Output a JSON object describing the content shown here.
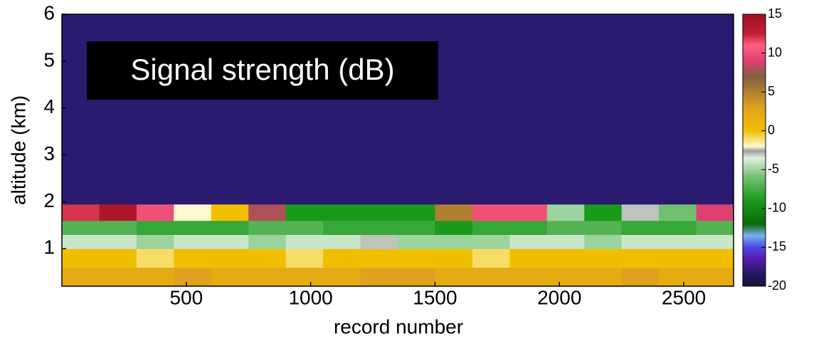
{
  "chart_data": {
    "type": "heatmap",
    "title": "Signal strength (dB)",
    "x_label": "record number",
    "y_label": "altitude (km)",
    "xlim": [
      0,
      2700
    ],
    "ylim": [
      0.2,
      6
    ],
    "xticks": [
      500,
      1000,
      1500,
      2000,
      2500
    ],
    "yticks": [
      1,
      2,
      3,
      4,
      5,
      6
    ],
    "x_edges": [
      0,
      150,
      300,
      450,
      600,
      750,
      900,
      1050,
      1200,
      1350,
      1500,
      1650,
      1800,
      1950,
      2100,
      2250,
      2400,
      2550,
      2700
    ],
    "y_edges": [
      0.2,
      0.6,
      1.0,
      1.3,
      1.6,
      1.95,
      6
    ],
    "values": [
      [
        2,
        2,
        2,
        3,
        2,
        2,
        2,
        2,
        3,
        3,
        2,
        2,
        2,
        2,
        2,
        3,
        2,
        2
      ],
      [
        0,
        0,
        -1,
        0,
        0,
        0,
        -1,
        0,
        0,
        0,
        0,
        -1,
        0,
        0,
        0,
        0,
        0,
        0
      ],
      [
        -4,
        -4,
        -5,
        -4,
        -4,
        -5,
        -4,
        -4,
        -3,
        -5,
        -5,
        -5,
        -4,
        -4,
        -5,
        -4,
        -4,
        -4
      ],
      [
        -7,
        -7,
        -8,
        -8,
        -8,
        -7,
        -7,
        -8,
        -8,
        -8,
        -9,
        -8,
        -8,
        -7,
        -7,
        -8,
        -8,
        -7
      ],
      [
        12,
        14,
        10,
        -2,
        0,
        8,
        -9,
        -9,
        -9,
        -9,
        5,
        10,
        10,
        -5,
        -9,
        -3,
        -6,
        9
      ],
      [
        -18,
        -18,
        -18,
        -18,
        -18,
        -18,
        -18,
        -18,
        -18,
        -18,
        -18,
        -18,
        -18,
        -18,
        -18,
        -18,
        -18,
        -18
      ]
    ],
    "clim": [
      -20,
      15
    ],
    "cticks": [
      -20,
      -15,
      -10,
      -5,
      0,
      5,
      10,
      15
    ],
    "colorscale": [
      [
        -20,
        "#14143c"
      ],
      [
        -18,
        "#2a1a70"
      ],
      [
        -16.5,
        "#5a1ab0"
      ],
      [
        -15,
        "#4a4ae0"
      ],
      [
        -13.5,
        "#7ab0f0"
      ],
      [
        -12,
        "#0a6a0a"
      ],
      [
        -9,
        "#1a9a1a"
      ],
      [
        -6,
        "#70c070"
      ],
      [
        -3.5,
        "#e0f0e0"
      ],
      [
        -2.6,
        "#a0a0a0"
      ],
      [
        -2,
        "#fff8d0"
      ],
      [
        0,
        "#f0c000"
      ],
      [
        3,
        "#e0a020"
      ],
      [
        7,
        "#806040"
      ],
      [
        9,
        "#e04070"
      ],
      [
        11,
        "#ff6080"
      ],
      [
        12.5,
        "#c02030"
      ],
      [
        15,
        "#a01020"
      ]
    ]
  }
}
